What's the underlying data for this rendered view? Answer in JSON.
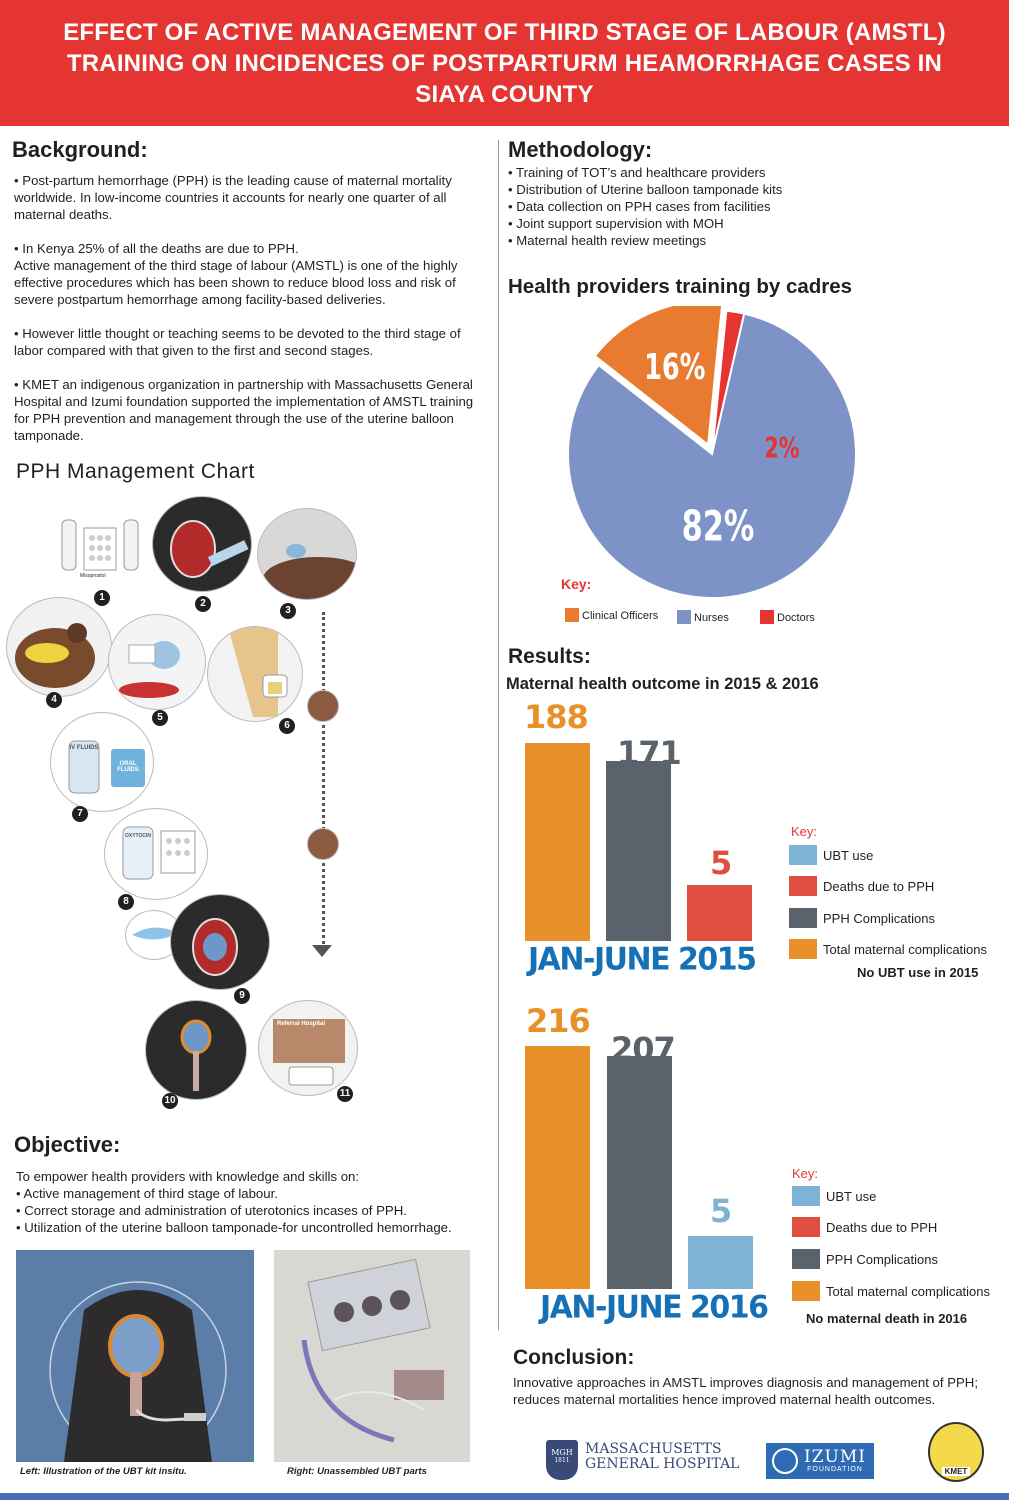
{
  "title": {
    "lines": [
      "EFFECT OF ACTIVE MANAGEMENT OF THIRD STAGE OF LABOUR (AMSTL)",
      "TRAINING ON INCIDENCES OF POSTPARTURM HEAMORRHAGE CASES IN",
      "SIAYA COUNTY"
    ]
  },
  "background": {
    "heading": "Background:",
    "paragraphs": [
      "• Post-partum hemorrhage (PPH) is the leading cause of maternal mortality worldwide.  In low-income countries it accounts for nearly one quarter of all maternal deaths.",
      "• In Kenya 25% of all the deaths are due to PPH.",
      "Active management of the third stage of labour (AMSTL) is one of the highly effective procedures which has been shown to reduce blood loss and risk of severe postpartum hemorrhage among facility-based deliveries.",
      "• However little thought or teaching seems to be devoted to the third stage of labor compared with that given to the first and second stages.",
      "• KMET an indigenous organization in partnership with Massachusetts General Hospital and Izumi foundation supported the implementation of AMSTL training for PPH prevention and management through the use of the uterine balloon tamponade."
    ]
  },
  "pph_chart": {
    "heading": "PPH Management Chart",
    "step_numbers": [
      "1",
      "2",
      "3",
      "4",
      "5",
      "6",
      "7",
      "8",
      "9",
      "10",
      "11"
    ],
    "labels": {
      "iv_fluids": "IV FLUIDS",
      "oral_fluids": "ORAL FLUIDS",
      "oxytocin": "OXYTOCIN",
      "misoprostol": "Misoprostol",
      "hospital": "Referral Hospital"
    }
  },
  "objective": {
    "heading": "Objective:",
    "intro": "To empower health providers with knowledge and skills on:",
    "items": [
      "• Active management of third stage of labour.",
      "• Correct storage and administration of uterotonics incases of PPH.",
      "• Utilization of the uterine balloon tamponade-for uncontrolled hemorrhage."
    ],
    "caption_left": "Left: Illustration of the UBT kit insitu.",
    "caption_right": "Right: Unassembled UBT parts"
  },
  "methodology": {
    "heading": "Methodology:",
    "items": [
      "• Training of TOT’s and healthcare providers",
      "• Distribution of Uterine balloon tamponade kits",
      "• Data collection on PPH cases from facilities",
      "• Joint support supervision with MOH",
      "• Maternal health review meetings"
    ]
  },
  "pie": {
    "heading": "Health providers training by cadres",
    "key_title": "Key:",
    "colors": {
      "clinical": "#e87b2f",
      "nurses": "#7d92c6",
      "doctors": "#e43532"
    }
  },
  "results": {
    "heading": "Results:",
    "subheading": "Maternal health outcome in 2015 & 2016",
    "key_title": "Key:",
    "note_2015": "No UBT use in 2015",
    "note_2016": "No maternal death in 2016"
  },
  "chart_data": [
    {
      "type": "pie",
      "title": "Health providers training by cadres",
      "labels": [
        "Clinical Officers",
        "Nurses",
        "Doctors"
      ],
      "values": [
        16,
        82,
        2
      ],
      "value_labels": [
        "16%",
        "82%",
        "2%"
      ]
    },
    {
      "type": "bar",
      "title": "JAN-JUNE 2015",
      "categories": [
        "Total maternal complications",
        "PPH Complications",
        "Deaths due to PPH"
      ],
      "values": [
        188,
        171,
        5
      ],
      "legend": [
        "UBT use",
        "Deaths due to PPH",
        "PPH Complications",
        "Total maternal complications"
      ],
      "ylim": [
        0,
        188
      ]
    },
    {
      "type": "bar",
      "title": "JAN-JUNE 2016",
      "categories": [
        "Total maternal complications",
        "PPH Complications",
        "UBT use"
      ],
      "values": [
        216,
        207,
        5
      ],
      "legend": [
        "UBT use",
        "Deaths due to PPH",
        "PPH Complications",
        "Total maternal complications"
      ],
      "ylim": [
        0,
        216
      ]
    }
  ],
  "legend_colors": {
    "ubt": "#7fb3d5",
    "deaths": "#e04e40",
    "pph": "#5a636b",
    "total": "#e8912a"
  },
  "conclusion": {
    "heading": "Conclusion:",
    "text": "Innovative approaches in AMSTL improves diagnosis and management of PPH; reduces maternal mortalities hence improved maternal health outcomes."
  },
  "logos": {
    "mgh_line1": "MASSACHUSETTS",
    "mgh_line2": "GENERAL HOSPITAL",
    "mgh_badge": "MGH",
    "mgh_year": "1811",
    "izumi": "IZUMI",
    "izumi_sub": "FOUNDATION",
    "kmet": "KMET"
  }
}
